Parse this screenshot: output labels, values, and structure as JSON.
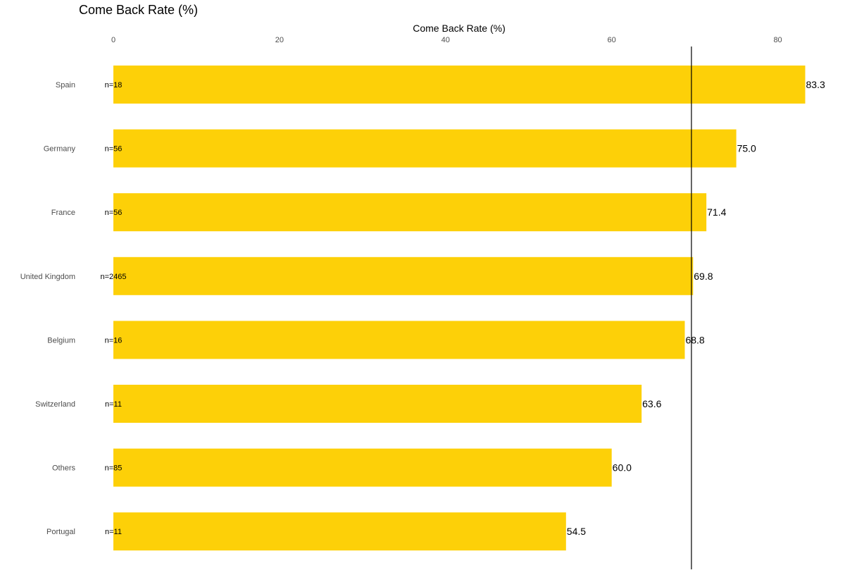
{
  "chart_data": {
    "type": "bar",
    "orientation": "horizontal",
    "title": "Come Back Rate (%)",
    "xlabel": "Come Back Rate (%)",
    "ylabel": "",
    "xlim": [
      0,
      83.3
    ],
    "x_ticks": [
      "0",
      "20",
      "40",
      "60",
      "80"
    ],
    "categories": [
      "Spain",
      "Germany",
      "France",
      "United Kingdom",
      "Belgium",
      "Switzerland",
      "Others",
      "Portugal"
    ],
    "values": [
      83.3,
      75.0,
      71.4,
      69.8,
      68.8,
      63.6,
      60.0,
      54.5
    ],
    "value_labels": [
      "83.3",
      "75.0",
      "71.4",
      "69.8",
      "68.8",
      "63.6",
      "60.0",
      "54.5"
    ],
    "n_labels": [
      "n=18",
      "n=56",
      "n=56",
      "n=2465",
      "n=16",
      "n=11",
      "n=85",
      "n=11"
    ],
    "reference_line": 69.6,
    "bar_color": "#FDD008",
    "grid": false,
    "legend": "none"
  }
}
